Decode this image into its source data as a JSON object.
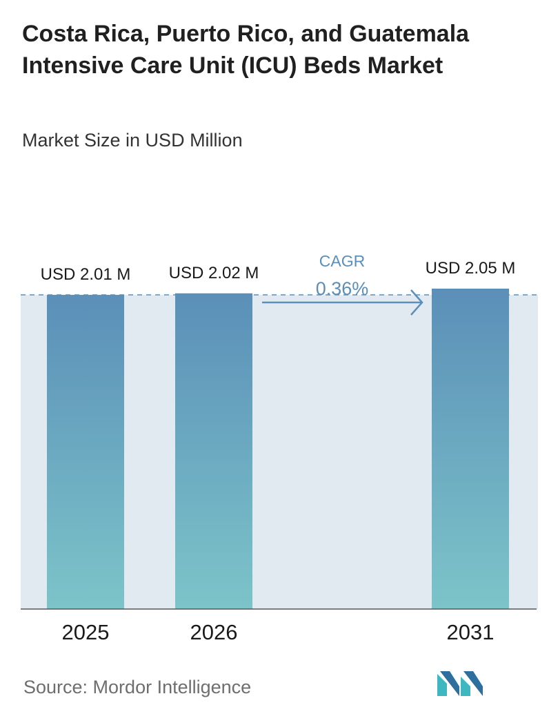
{
  "title": "Costa Rica, Puerto Rico, and Guatemala Intensive Care Unit (ICU) Beds Market",
  "subtitle": "Market Size in USD Million",
  "source": "Source: Mordor Intelligence",
  "logo_icon": "mordor-intelligence-logo-icon",
  "colors": {
    "bar_top": "#5b8fb8",
    "bar_bottom": "#7cc4c9",
    "cagr_band": "#e2eaf1",
    "cagr_text": "#5b8fb8",
    "dashed_line": "#5b8fb8",
    "axis": "#555555"
  },
  "chart_data": {
    "type": "bar",
    "title": "Costa Rica, Puerto Rico, and Guatemala Intensive Care Unit (ICU) Beds Market",
    "ylabel": "Market Size in USD Million",
    "categories": [
      "2025",
      "2026",
      "2031"
    ],
    "values": [
      2.01,
      2.02,
      2.05
    ],
    "value_labels": [
      "USD 2.01 M",
      "USD 2.02 M",
      "USD 2.05 M"
    ],
    "ylim": [
      0,
      2.05
    ],
    "grid": false,
    "annotation": {
      "label": "CAGR",
      "value": "0.36%",
      "from": "2026",
      "to": "2031"
    }
  }
}
